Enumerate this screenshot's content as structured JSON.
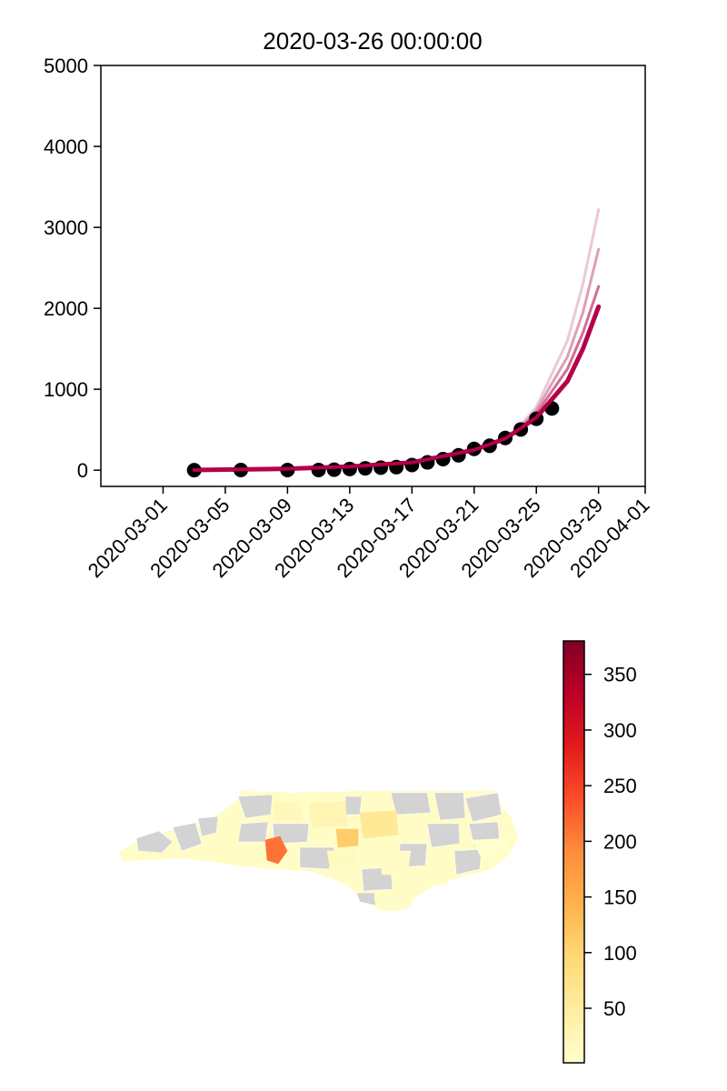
{
  "chart_data": [
    {
      "type": "scatter",
      "title": "2020-03-26 00:00:00",
      "xlabel": "",
      "ylabel": "",
      "x_axis": {
        "type": "date",
        "range": [
          "2020-02-26",
          "2020-04-01"
        ],
        "ticks": [
          "2020-03-01",
          "2020-03-05",
          "2020-03-09",
          "2020-03-13",
          "2020-03-17",
          "2020-03-21",
          "2020-03-25",
          "2020-03-29",
          "2020-04-01"
        ]
      },
      "y_axis": {
        "range": [
          -200,
          5000
        ],
        "ticks": [
          0,
          1000,
          2000,
          3000,
          4000,
          5000
        ]
      },
      "grid": false,
      "observed": {
        "color": "#000000",
        "points": [
          [
            "2020-03-03",
            1
          ],
          [
            "2020-03-06",
            2
          ],
          [
            "2020-03-09",
            2
          ],
          [
            "2020-03-11",
            2
          ],
          [
            "2020-03-12",
            7
          ],
          [
            "2020-03-13",
            15
          ],
          [
            "2020-03-14",
            23
          ],
          [
            "2020-03-15",
            32
          ],
          [
            "2020-03-16",
            38
          ],
          [
            "2020-03-17",
            64
          ],
          [
            "2020-03-18",
            97
          ],
          [
            "2020-03-19",
            137
          ],
          [
            "2020-03-20",
            184
          ],
          [
            "2020-03-21",
            263
          ],
          [
            "2020-03-22",
            302
          ],
          [
            "2020-03-23",
            398
          ],
          [
            "2020-03-24",
            504
          ],
          [
            "2020-03-25",
            636
          ],
          [
            "2020-03-26",
            763
          ]
        ]
      },
      "fits": [
        {
          "color": "#b5004a",
          "opacity": 1.0,
          "width": 5,
          "points": [
            [
              "2020-03-03",
              2
            ],
            [
              "2020-03-09",
              18
            ],
            [
              "2020-03-13",
              45
            ],
            [
              "2020-03-17",
              95
            ],
            [
              "2020-03-21",
              250
            ],
            [
              "2020-03-23",
              390
            ],
            [
              "2020-03-25",
              650
            ],
            [
              "2020-03-27",
              1100
            ],
            [
              "2020-03-28",
              1500
            ],
            [
              "2020-03-29",
              2020
            ]
          ]
        },
        {
          "color": "#d0708f",
          "opacity": 1.0,
          "width": 3,
          "points": [
            [
              "2020-03-24",
              520
            ],
            [
              "2020-03-25",
              700
            ],
            [
              "2020-03-27",
              1250
            ],
            [
              "2020-03-28",
              1700
            ],
            [
              "2020-03-29",
              2270
            ]
          ]
        },
        {
          "color": "#dd9fb6",
          "opacity": 1.0,
          "width": 3,
          "points": [
            [
              "2020-03-24",
              540
            ],
            [
              "2020-03-25",
              740
            ],
            [
              "2020-03-27",
              1400
            ],
            [
              "2020-03-28",
              1950
            ],
            [
              "2020-03-29",
              2730
            ]
          ]
        },
        {
          "color": "#ecc8d6",
          "opacity": 1.0,
          "width": 3,
          "points": [
            [
              "2020-03-24",
              560
            ],
            [
              "2020-03-25",
              780
            ],
            [
              "2020-03-27",
              1600
            ],
            [
              "2020-03-28",
              2300
            ],
            [
              "2020-03-29",
              3220
            ]
          ]
        }
      ]
    },
    {
      "type": "choropleth",
      "colorbar": {
        "ticks": [
          50,
          100,
          150,
          200,
          250,
          300,
          350
        ],
        "range": [
          1,
          380
        ],
        "colormap": [
          "#ffffcc",
          "#ffeda0",
          "#fed976",
          "#feb24c",
          "#fd8d3c",
          "#fc4e2a",
          "#e31a1c",
          "#bd0026",
          "#800026"
        ]
      },
      "no_data_color": "#d3d3d3",
      "regions": [
        {
          "value": 30
        },
        {
          "value": 8
        },
        {
          "value": 15
        },
        {
          "value": 2
        },
        {
          "value": 60
        },
        {
          "value": 210
        },
        {
          "value": 110
        },
        {
          "value": 12
        },
        {
          "value": 6
        },
        {
          "value": 4
        },
        {
          "value": 20
        },
        {
          "value": 9
        }
      ]
    }
  ]
}
